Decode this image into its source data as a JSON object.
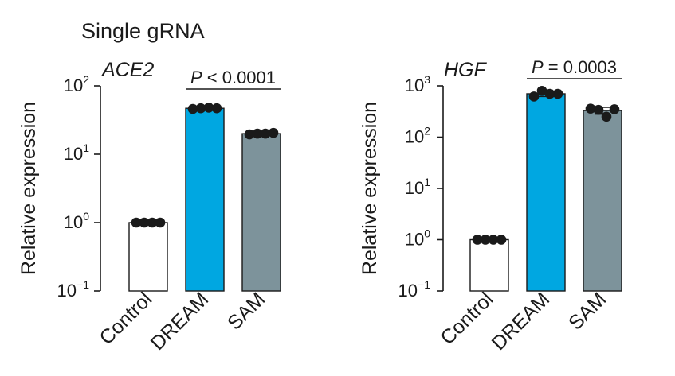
{
  "figure_title": "Single gRNA",
  "chart_data": [
    {
      "type": "bar",
      "panel_label": "ACE2",
      "ylabel": "Relative expression",
      "yscale": "log",
      "ylim": [
        0.1,
        100
      ],
      "ytick_values": [
        0.1,
        1,
        10,
        100
      ],
      "ytick_labels": [
        {
          "base": "10",
          "exp": "−1"
        },
        {
          "base": "10",
          "exp": "0"
        },
        {
          "base": "10",
          "exp": "1"
        },
        {
          "base": "10",
          "exp": "2"
        }
      ],
      "categories": [
        "Control",
        "DREAM",
        "SAM"
      ],
      "values": [
        1,
        47,
        20
      ],
      "bar_colors": [
        "#ffffff",
        "#00a7e1",
        "#7d939b"
      ],
      "points": [
        [
          1,
          1,
          1,
          1
        ],
        [
          46,
          47,
          48,
          47
        ],
        [
          19.5,
          20,
          20,
          20.5
        ]
      ],
      "error": [
        null,
        null,
        null
      ],
      "significance": {
        "label": "P < 0.0001",
        "italic_part": "P",
        "from": "DREAM",
        "to": "SAM"
      }
    },
    {
      "type": "bar",
      "panel_label": "HGF",
      "ylabel": "Relative expression",
      "yscale": "log",
      "ylim": [
        0.1,
        1000
      ],
      "ytick_values": [
        0.1,
        1,
        10,
        100,
        1000
      ],
      "ytick_labels": [
        {
          "base": "10",
          "exp": "−1"
        },
        {
          "base": "10",
          "exp": "0"
        },
        {
          "base": "10",
          "exp": "1"
        },
        {
          "base": "10",
          "exp": "2"
        },
        {
          "base": "10",
          "exp": "3"
        }
      ],
      "categories": [
        "Control",
        "DREAM",
        "SAM"
      ],
      "values": [
        1,
        700,
        330
      ],
      "bar_colors": [
        "#ffffff",
        "#00a7e1",
        "#7d939b"
      ],
      "points": [
        [
          1,
          1,
          1,
          1
        ],
        [
          620,
          800,
          700,
          700
        ],
        [
          360,
          340,
          250,
          350
        ]
      ],
      "error": [
        null,
        [
          620,
          780
        ],
        [
          280,
          380
        ]
      ],
      "significance": {
        "label": "P = 0.0003",
        "italic_part": "P",
        "from": "DREAM",
        "to": "SAM"
      }
    }
  ]
}
